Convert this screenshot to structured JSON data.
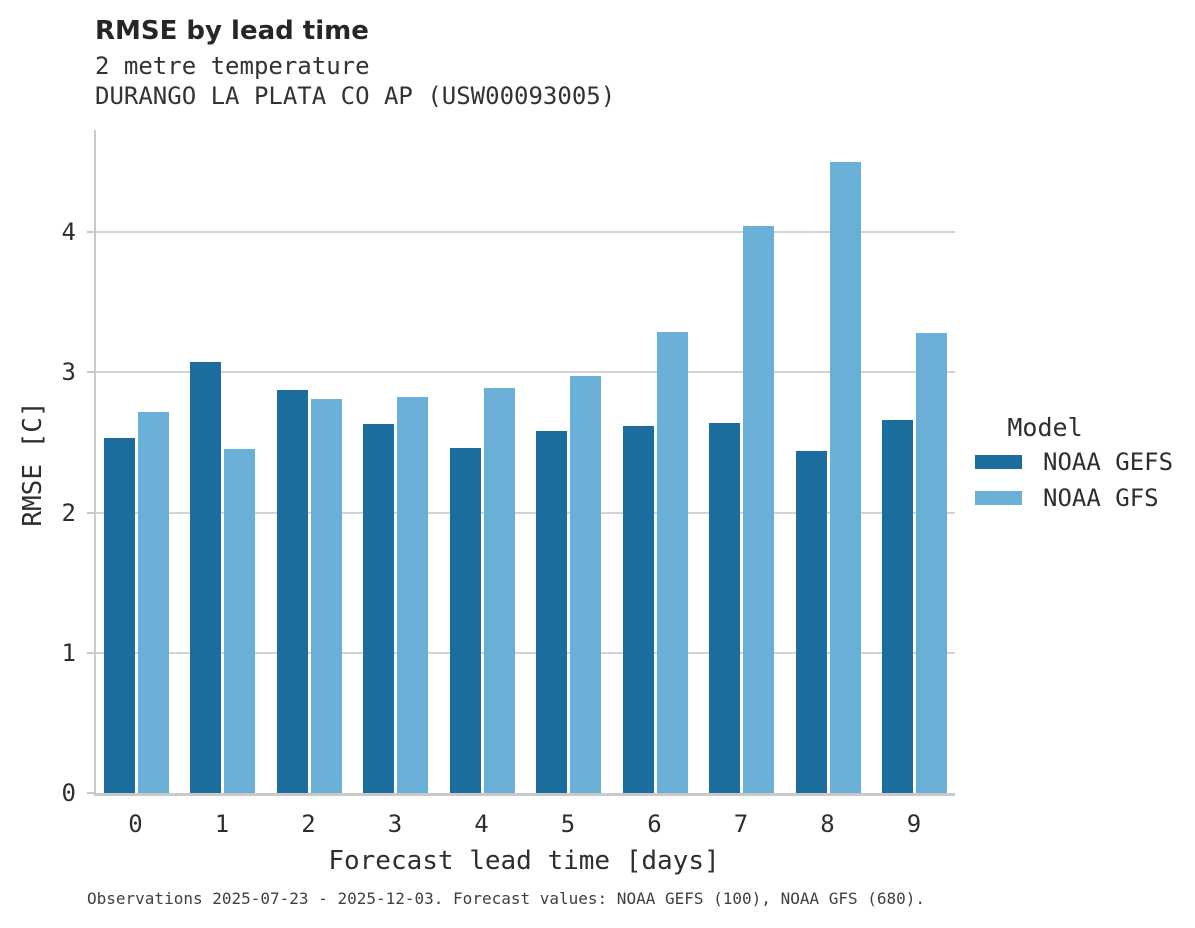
{
  "header": {
    "title": "RMSE by lead time",
    "subtitle_line1": "2 metre temperature",
    "subtitle_line2": "DURANGO LA PLATA CO AP (USW00093005)"
  },
  "chart_data": {
    "type": "bar",
    "title": "RMSE by lead time",
    "subtitle": [
      "2 metre temperature",
      "DURANGO LA PLATA CO AP (USW00093005)"
    ],
    "categories": [
      "0",
      "1",
      "2",
      "3",
      "4",
      "5",
      "6",
      "7",
      "8",
      "9"
    ],
    "series": [
      {
        "name": "NOAA GEFS",
        "color": "#1A6D9D",
        "values": [
          2.53,
          3.07,
          2.87,
          2.63,
          2.46,
          2.58,
          2.62,
          2.64,
          2.44,
          2.66
        ]
      },
      {
        "name": "NOAA GFS",
        "color": "#69AFD8",
        "values": [
          2.72,
          2.45,
          2.81,
          2.82,
          2.89,
          2.97,
          3.29,
          4.04,
          4.5,
          3.28
        ]
      }
    ],
    "xlabel": "Forecast lead time [days]",
    "ylabel": "RMSE [C]",
    "ylim": [
      0,
      4.72
    ],
    "yticks": [
      0,
      1,
      2,
      3,
      4
    ],
    "grid": "horizontal-only",
    "legend_title": "Model",
    "legend_position": "right-center"
  },
  "legend": {
    "title": "Model",
    "entries": [
      "NOAA GEFS",
      "NOAA GFS"
    ]
  },
  "footer": {
    "caption": "Observations 2025-07-23 - 2025-12-03. Forecast values: NOAA GEFS (100), NOAA GFS (680)."
  },
  "colors": {
    "noaa_gefs": "#1A6D9D",
    "noaa_gfs": "#69AFD8",
    "gridline": "#d4d4d4",
    "axis": "#c9c9c9",
    "title_text": "#262626",
    "body_text": "#2e2e2e",
    "caption_text": "#404040"
  }
}
